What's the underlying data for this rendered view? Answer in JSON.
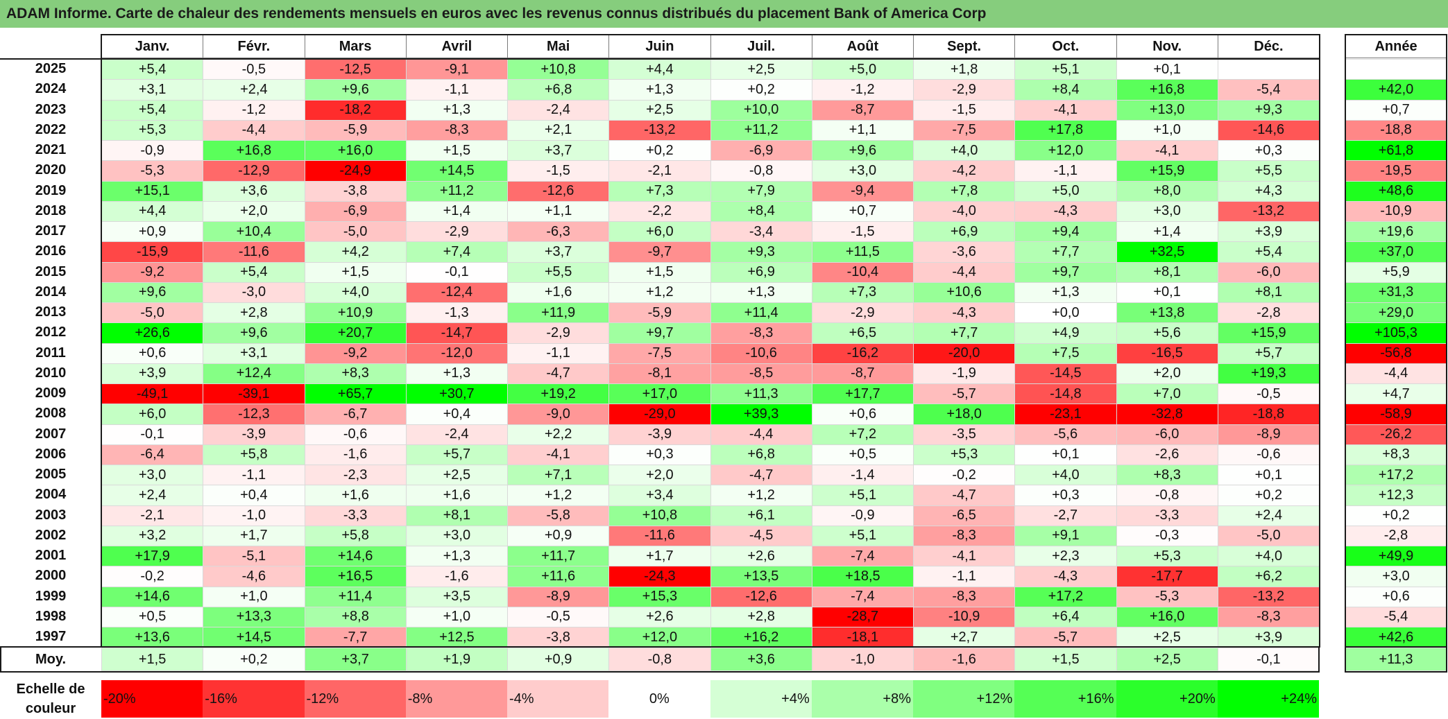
{
  "title": "ADAM Informe. Carte de chaleur des rendements mensuels en euros avec les revenus connus distribués du placement Bank of America Corp",
  "chart_data": {
    "type": "heatmap",
    "columns": [
      "Janv.",
      "Févr.",
      "Mars",
      "Avril",
      "Mai",
      "Juin",
      "Juil.",
      "Août",
      "Sept.",
      "Oct.",
      "Nov.",
      "Déc."
    ],
    "year_header": "Année",
    "rows": [
      {
        "year": "2025",
        "months": [
          "+5,4",
          "-0,5",
          "-12,5",
          "-9,1",
          "+10,8",
          "+4,4",
          "+2,5",
          "+5,0",
          "+1,8",
          "+5,1",
          "+0,1",
          ""
        ],
        "annual": ""
      },
      {
        "year": "2024",
        "months": [
          "+3,1",
          "+2,4",
          "+9,6",
          "-1,1",
          "+6,8",
          "+1,3",
          "+0,2",
          "-1,2",
          "-2,9",
          "+8,4",
          "+16,8",
          "-5,4"
        ],
        "annual": "+42,0"
      },
      {
        "year": "2023",
        "months": [
          "+5,4",
          "-1,2",
          "-18,2",
          "+1,3",
          "-2,4",
          "+2,5",
          "+10,0",
          "-8,7",
          "-1,5",
          "-4,1",
          "+13,0",
          "+9,3"
        ],
        "annual": "+0,7"
      },
      {
        "year": "2022",
        "months": [
          "+5,3",
          "-4,4",
          "-5,9",
          "-8,3",
          "+2,1",
          "-13,2",
          "+11,2",
          "+1,1",
          "-7,5",
          "+17,8",
          "+1,0",
          "-14,6"
        ],
        "annual": "-18,8"
      },
      {
        "year": "2021",
        "months": [
          "-0,9",
          "+16,8",
          "+16,0",
          "+1,5",
          "+3,7",
          "+0,2",
          "-6,9",
          "+9,6",
          "+4,0",
          "+12,0",
          "-4,1",
          "+0,3"
        ],
        "annual": "+61,8"
      },
      {
        "year": "2020",
        "months": [
          "-5,3",
          "-12,9",
          "-24,9",
          "+14,5",
          "-1,5",
          "-2,1",
          "-0,8",
          "+3,0",
          "-4,2",
          "-1,1",
          "+15,9",
          "+5,5"
        ],
        "annual": "-19,5"
      },
      {
        "year": "2019",
        "months": [
          "+15,1",
          "+3,6",
          "-3,8",
          "+11,2",
          "-12,6",
          "+7,3",
          "+7,9",
          "-9,4",
          "+7,8",
          "+5,0",
          "+8,0",
          "+4,3"
        ],
        "annual": "+48,6"
      },
      {
        "year": "2018",
        "months": [
          "+4,4",
          "+2,0",
          "-6,9",
          "+1,4",
          "+1,1",
          "-2,2",
          "+8,4",
          "+0,7",
          "-4,0",
          "-4,3",
          "+3,0",
          "-13,2"
        ],
        "annual": "-10,9"
      },
      {
        "year": "2017",
        "months": [
          "+0,9",
          "+10,4",
          "-5,0",
          "-2,9",
          "-6,3",
          "+6,0",
          "-3,4",
          "-1,5",
          "+6,9",
          "+9,4",
          "+1,4",
          "+3,9"
        ],
        "annual": "+19,6"
      },
      {
        "year": "2016",
        "months": [
          "-15,9",
          "-11,6",
          "+4,2",
          "+7,4",
          "+3,7",
          "-9,7",
          "+9,3",
          "+11,5",
          "-3,6",
          "+7,7",
          "+32,5",
          "+5,4"
        ],
        "annual": "+37,0"
      },
      {
        "year": "2015",
        "months": [
          "-9,2",
          "+5,4",
          "+1,5",
          "-0,1",
          "+5,5",
          "+1,5",
          "+6,9",
          "-10,4",
          "-4,4",
          "+9,7",
          "+8,1",
          "-6,0"
        ],
        "annual": "+5,9"
      },
      {
        "year": "2014",
        "months": [
          "+9,6",
          "-3,0",
          "+4,0",
          "-12,4",
          "+1,6",
          "+1,2",
          "+1,3",
          "+7,3",
          "+10,6",
          "+1,3",
          "+0,1",
          "+8,1"
        ],
        "annual": "+31,3"
      },
      {
        "year": "2013",
        "months": [
          "-5,0",
          "+2,8",
          "+10,9",
          "-1,3",
          "+11,9",
          "-5,9",
          "+11,4",
          "-2,9",
          "-4,3",
          "+0,0",
          "+13,8",
          "-2,8"
        ],
        "annual": "+29,0"
      },
      {
        "year": "2012",
        "months": [
          "+26,6",
          "+9,6",
          "+20,7",
          "-14,7",
          "-2,9",
          "+9,7",
          "-8,3",
          "+6,5",
          "+7,7",
          "+4,9",
          "+5,6",
          "+15,9"
        ],
        "annual": "+105,3"
      },
      {
        "year": "2011",
        "months": [
          "+0,6",
          "+3,1",
          "-9,2",
          "-12,0",
          "-1,1",
          "-7,5",
          "-10,6",
          "-16,2",
          "-20,0",
          "+7,5",
          "-16,5",
          "+5,7"
        ],
        "annual": "-56,8"
      },
      {
        "year": "2010",
        "months": [
          "+3,9",
          "+12,4",
          "+8,3",
          "+1,3",
          "-4,7",
          "-8,1",
          "-8,5",
          "-8,7",
          "-1,9",
          "-14,5",
          "+2,0",
          "+19,3"
        ],
        "annual": "-4,4"
      },
      {
        "year": "2009",
        "months": [
          "-49,1",
          "-39,1",
          "+65,7",
          "+30,7",
          "+19,2",
          "+17,0",
          "+11,3",
          "+17,7",
          "-5,7",
          "-14,8",
          "+7,0",
          "-0,5"
        ],
        "annual": "+4,7"
      },
      {
        "year": "2008",
        "months": [
          "+6,0",
          "-12,3",
          "-6,7",
          "+0,4",
          "-9,0",
          "-29,0",
          "+39,3",
          "+0,6",
          "+18,0",
          "-23,1",
          "-32,8",
          "-18,8"
        ],
        "annual": "-58,9"
      },
      {
        "year": "2007",
        "months": [
          "-0,1",
          "-3,9",
          "-0,6",
          "-2,4",
          "+2,2",
          "-3,9",
          "-4,4",
          "+7,2",
          "-3,5",
          "-5,6",
          "-6,0",
          "-8,9"
        ],
        "annual": "-26,2"
      },
      {
        "year": "2006",
        "months": [
          "-6,4",
          "+5,8",
          "-1,6",
          "+5,7",
          "-4,1",
          "+0,3",
          "+6,8",
          "+0,5",
          "+5,3",
          "+0,1",
          "-2,6",
          "-0,6"
        ],
        "annual": "+8,3"
      },
      {
        "year": "2005",
        "months": [
          "+3,0",
          "-1,1",
          "-2,3",
          "+2,5",
          "+7,1",
          "+2,0",
          "-4,7",
          "-1,4",
          "-0,2",
          "+4,0",
          "+8,3",
          "+0,1"
        ],
        "annual": "+17,2"
      },
      {
        "year": "2004",
        "months": [
          "+2,4",
          "+0,4",
          "+1,6",
          "+1,6",
          "+1,2",
          "+3,4",
          "+1,2",
          "+5,1",
          "-4,7",
          "+0,3",
          "-0,8",
          "+0,2"
        ],
        "annual": "+12,3"
      },
      {
        "year": "2003",
        "months": [
          "-2,1",
          "-1,0",
          "-3,3",
          "+8,1",
          "-5,8",
          "+10,8",
          "+6,1",
          "-0,9",
          "-6,5",
          "-2,7",
          "-3,3",
          "+2,4"
        ],
        "annual": "+0,2"
      },
      {
        "year": "2002",
        "months": [
          "+3,2",
          "+1,7",
          "+5,8",
          "+3,0",
          "+0,9",
          "-11,6",
          "-4,5",
          "+5,1",
          "-8,3",
          "+9,1",
          "-0,3",
          "-5,0"
        ],
        "annual": "-2,8"
      },
      {
        "year": "2001",
        "months": [
          "+17,9",
          "-5,1",
          "+14,6",
          "+1,3",
          "+11,7",
          "+1,7",
          "+2,6",
          "-7,4",
          "-4,1",
          "+2,3",
          "+5,3",
          "+4,0"
        ],
        "annual": "+49,9"
      },
      {
        "year": "2000",
        "months": [
          "-0,2",
          "-4,6",
          "+16,5",
          "-1,6",
          "+11,6",
          "-24,3",
          "+13,5",
          "+18,5",
          "-1,1",
          "-4,3",
          "-17,7",
          "+6,2"
        ],
        "annual": "+3,0"
      },
      {
        "year": "1999",
        "months": [
          "+14,6",
          "+1,0",
          "+11,4",
          "+3,5",
          "-8,9",
          "+15,3",
          "-12,6",
          "-7,4",
          "-8,3",
          "+17,2",
          "-5,3",
          "-13,2"
        ],
        "annual": "+0,6"
      },
      {
        "year": "1998",
        "months": [
          "+0,5",
          "+13,3",
          "+8,8",
          "+1,0",
          "-0,5",
          "+2,6",
          "+2,8",
          "-28,7",
          "-10,9",
          "+6,4",
          "+16,0",
          "-8,3"
        ],
        "annual": "-5,4"
      },
      {
        "year": "1997",
        "months": [
          "+13,6",
          "+14,5",
          "-7,7",
          "+12,5",
          "-3,8",
          "+12,0",
          "+16,2",
          "-18,1",
          "+2,7",
          "-5,7",
          "+2,5",
          "+3,9"
        ],
        "annual": "+42,6"
      }
    ],
    "average": {
      "label": "Moy.",
      "months": [
        "+1,5",
        "+0,2",
        "+3,7",
        "+1,9",
        "+0,9",
        "-0,8",
        "+3,6",
        "-1,0",
        "-1,6",
        "+1,5",
        "+2,5",
        "-0,1"
      ],
      "annual": "+11,3"
    },
    "color_scale": {
      "label": "Echelle de couleur",
      "stops": [
        "-20%",
        "-16%",
        "-12%",
        "-8%",
        "-4%",
        "0%",
        "+4%",
        "+8%",
        "+12%",
        "+16%",
        "+20%",
        "+24%"
      ],
      "negative_color": "#ff0000",
      "positive_color": "#00ff00",
      "neutral_color": "#ffffff"
    }
  }
}
